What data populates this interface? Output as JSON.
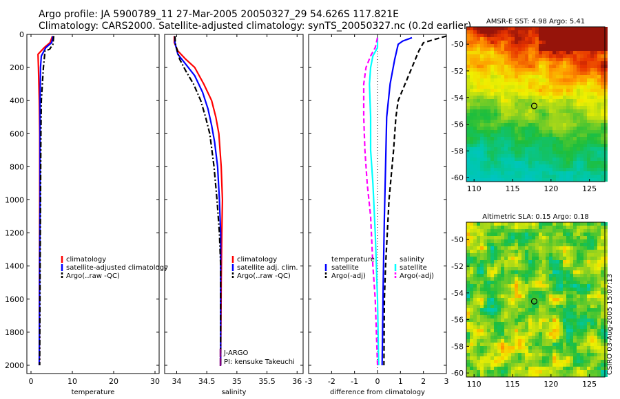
{
  "title": {
    "line1": "Argo profile: JA 5900789_11 27-Mar-2005 20050327_29 54.626S 117.821E",
    "line2": "Climatology: CARS2000. Satellite-adjusted climatology: synTS_20050327.nc (0.2d earlier)"
  },
  "credit": "CSIRO 03-Aug-2005 15:07:13",
  "colors": {
    "red": "#ff0000",
    "blue": "#0000ff",
    "black": "#000000",
    "cyan": "#00ffff",
    "magenta": "#ff00ff",
    "purple": "#800080"
  },
  "chart_data": [
    {
      "type": "line",
      "xlabel": "temperature",
      "xlim": [
        -1,
        31
      ],
      "xticks": [
        0,
        10,
        20,
        30
      ],
      "ylim": [
        2050,
        0
      ],
      "yticks": [
        0,
        200,
        400,
        600,
        800,
        1000,
        1200,
        1400,
        1600,
        1800,
        2000
      ],
      "series": [
        {
          "name": "climatology",
          "color": "#ff0000",
          "dash": "solid",
          "points": [
            [
              5.2,
              10
            ],
            [
              4.6,
              50
            ],
            [
              3.2,
              80
            ],
            [
              1.7,
              120
            ],
            [
              1.8,
              200
            ],
            [
              2.0,
              400
            ],
            [
              2.1,
              600
            ],
            [
              2.1,
              1000
            ],
            [
              2.05,
              1400
            ],
            [
              2.0,
              2000
            ]
          ]
        },
        {
          "name": "satellite-adjusted climatology",
          "color": "#0000ff",
          "dash": "solid",
          "points": [
            [
              5.3,
              10
            ],
            [
              5.0,
              50
            ],
            [
              3.6,
              80
            ],
            [
              2.5,
              130
            ],
            [
              2.3,
              200
            ],
            [
              2.2,
              400
            ],
            [
              2.2,
              600
            ],
            [
              2.2,
              1000
            ],
            [
              2.1,
              1400
            ],
            [
              2.0,
              2000
            ]
          ]
        },
        {
          "name": "Argo(..raw -QC)",
          "color": "#000000",
          "dash": "dashdot",
          "points": [
            [
              5.5,
              10
            ],
            [
              5.3,
              60
            ],
            [
              4.5,
              90
            ],
            [
              3.4,
              100
            ],
            [
              3.0,
              200
            ],
            [
              2.5,
              400
            ],
            [
              2.4,
              600
            ],
            [
              2.3,
              1000
            ],
            [
              2.2,
              1400
            ],
            [
              2.1,
              2000
            ]
          ]
        }
      ],
      "legend": [
        "climatology",
        "satellite-adjusted climatology",
        "Argo(..raw -QC)"
      ]
    },
    {
      "type": "line",
      "xlabel": "salinity",
      "xlim": [
        33.8,
        36.1
      ],
      "xticks": [
        34,
        34.5,
        35,
        35.5,
        36
      ],
      "ylim": [
        2050,
        0
      ],
      "series": [
        {
          "name": "climatology",
          "color": "#ff0000",
          "dash": "solid",
          "points": [
            [
              33.96,
              10
            ],
            [
              33.96,
              50
            ],
            [
              34.02,
              100
            ],
            [
              34.15,
              150
            ],
            [
              34.3,
              200
            ],
            [
              34.45,
              300
            ],
            [
              34.58,
              400
            ],
            [
              34.65,
              500
            ],
            [
              34.7,
              600
            ],
            [
              34.74,
              800
            ],
            [
              34.76,
              1000
            ],
            [
              34.75,
              1200
            ],
            [
              34.74,
              1500
            ],
            [
              34.73,
              2000
            ]
          ]
        },
        {
          "name": "satellite adj. clim.",
          "color": "#0000ff",
          "dash": "solid",
          "points": [
            [
              33.97,
              10
            ],
            [
              33.97,
              50
            ],
            [
              34.02,
              120
            ],
            [
              34.15,
              180
            ],
            [
              34.3,
              250
            ],
            [
              34.43,
              350
            ],
            [
              34.52,
              450
            ],
            [
              34.58,
              550
            ],
            [
              34.63,
              650
            ],
            [
              34.68,
              800
            ],
            [
              34.71,
              1000
            ],
            [
              34.73,
              1200
            ],
            [
              34.73,
              1500
            ],
            [
              34.73,
              2000
            ]
          ]
        },
        {
          "name": "Argo(..raw -QC)",
          "color": "#000000",
          "dash": "dashdot",
          "points": [
            [
              33.97,
              10
            ],
            [
              33.98,
              60
            ],
            [
              34.05,
              150
            ],
            [
              34.15,
              220
            ],
            [
              34.28,
              300
            ],
            [
              34.4,
              400
            ],
            [
              34.48,
              500
            ],
            [
              34.55,
              600
            ],
            [
              34.62,
              800
            ],
            [
              34.67,
              1000
            ],
            [
              34.71,
              1200
            ],
            [
              34.73,
              1400
            ],
            [
              34.73,
              2000
            ]
          ]
        }
      ],
      "legend": [
        "climatology",
        "satellite adj. clim.",
        "Argo(..raw -QC)"
      ],
      "annotations": [
        "J-ARGO",
        "PI: kensuke Takeuchi"
      ]
    },
    {
      "type": "line",
      "xlabel": "difference from climatology",
      "xlim": [
        -3,
        3
      ],
      "xticks": [
        -3,
        -2,
        -1,
        0,
        1,
        2,
        3
      ],
      "ylim": [
        2050,
        0
      ],
      "zero_line": true,
      "series": [
        {
          "name": "temperature satellite",
          "color": "#0000ff",
          "dash": "solid",
          "points": [
            [
              1.5,
              20
            ],
            [
              1.1,
              40
            ],
            [
              0.9,
              60
            ],
            [
              0.75,
              150
            ],
            [
              0.55,
              300
            ],
            [
              0.4,
              500
            ],
            [
              0.35,
              800
            ],
            [
              0.3,
              1100
            ],
            [
              0.25,
              1500
            ],
            [
              0.2,
              2000
            ]
          ]
        },
        {
          "name": "temperature Argo(-adj)",
          "color": "#000000",
          "dash": "dashed",
          "points": [
            [
              3.0,
              10
            ],
            [
              2.5,
              30
            ],
            [
              2.0,
              50
            ],
            [
              1.8,
              100
            ],
            [
              1.5,
              200
            ],
            [
              1.2,
              300
            ],
            [
              0.9,
              400
            ],
            [
              0.8,
              500
            ],
            [
              0.7,
              700
            ],
            [
              0.5,
              1000
            ],
            [
              0.35,
              1400
            ],
            [
              0.3,
              1600
            ],
            [
              0.28,
              2000
            ]
          ]
        },
        {
          "name": "salinity satellite",
          "color": "#00ffff",
          "dash": "solid",
          "points": [
            [
              0.0,
              20
            ],
            [
              0.0,
              80
            ],
            [
              -0.2,
              130
            ],
            [
              -0.3,
              200
            ],
            [
              -0.35,
              300
            ],
            [
              -0.3,
              500
            ],
            [
              -0.3,
              700
            ],
            [
              -0.2,
              900
            ],
            [
              -0.1,
              1200
            ],
            [
              0.0,
              1600
            ],
            [
              0.05,
              2000
            ]
          ]
        },
        {
          "name": "salinity Argo(-adj)",
          "color": "#ff00ff",
          "dash": "dashed",
          "points": [
            [
              0.0,
              20
            ],
            [
              -0.1,
              80
            ],
            [
              -0.3,
              130
            ],
            [
              -0.5,
              200
            ],
            [
              -0.6,
              300
            ],
            [
              -0.6,
              500
            ],
            [
              -0.55,
              700
            ],
            [
              -0.45,
              900
            ],
            [
              -0.3,
              1100
            ],
            [
              -0.2,
              1400
            ],
            [
              -0.1,
              1600
            ],
            [
              0.0,
              2000
            ]
          ]
        }
      ],
      "legend_left": {
        "title": "temperature",
        "entries": [
          "satellite",
          "Argo(-adj)"
        ]
      },
      "legend_right": {
        "title": "salinity",
        "entries": [
          "satellite",
          "Argo(-adj)"
        ]
      }
    },
    {
      "type": "heatmap",
      "title": "AMSR-E SST: 4.98 Argo: 5.41",
      "xlim": [
        109,
        127
      ],
      "ylim": [
        -60.3,
        -48.7
      ],
      "xticks": [
        110,
        115,
        120,
        125
      ],
      "yticks": [
        -50,
        -52,
        -54,
        -56,
        -58,
        -60
      ],
      "marker": [
        117.82,
        -54.63
      ]
    },
    {
      "type": "heatmap",
      "title": "Altimetric SLA: 0.15 Argo: 0.18",
      "xlim": [
        109,
        127
      ],
      "ylim": [
        -60.3,
        -48.7
      ],
      "xticks": [
        110,
        115,
        120,
        125
      ],
      "yticks": [
        -50,
        -52,
        -54,
        -56,
        -58,
        -60
      ],
      "marker": [
        117.82,
        -54.63
      ]
    }
  ]
}
